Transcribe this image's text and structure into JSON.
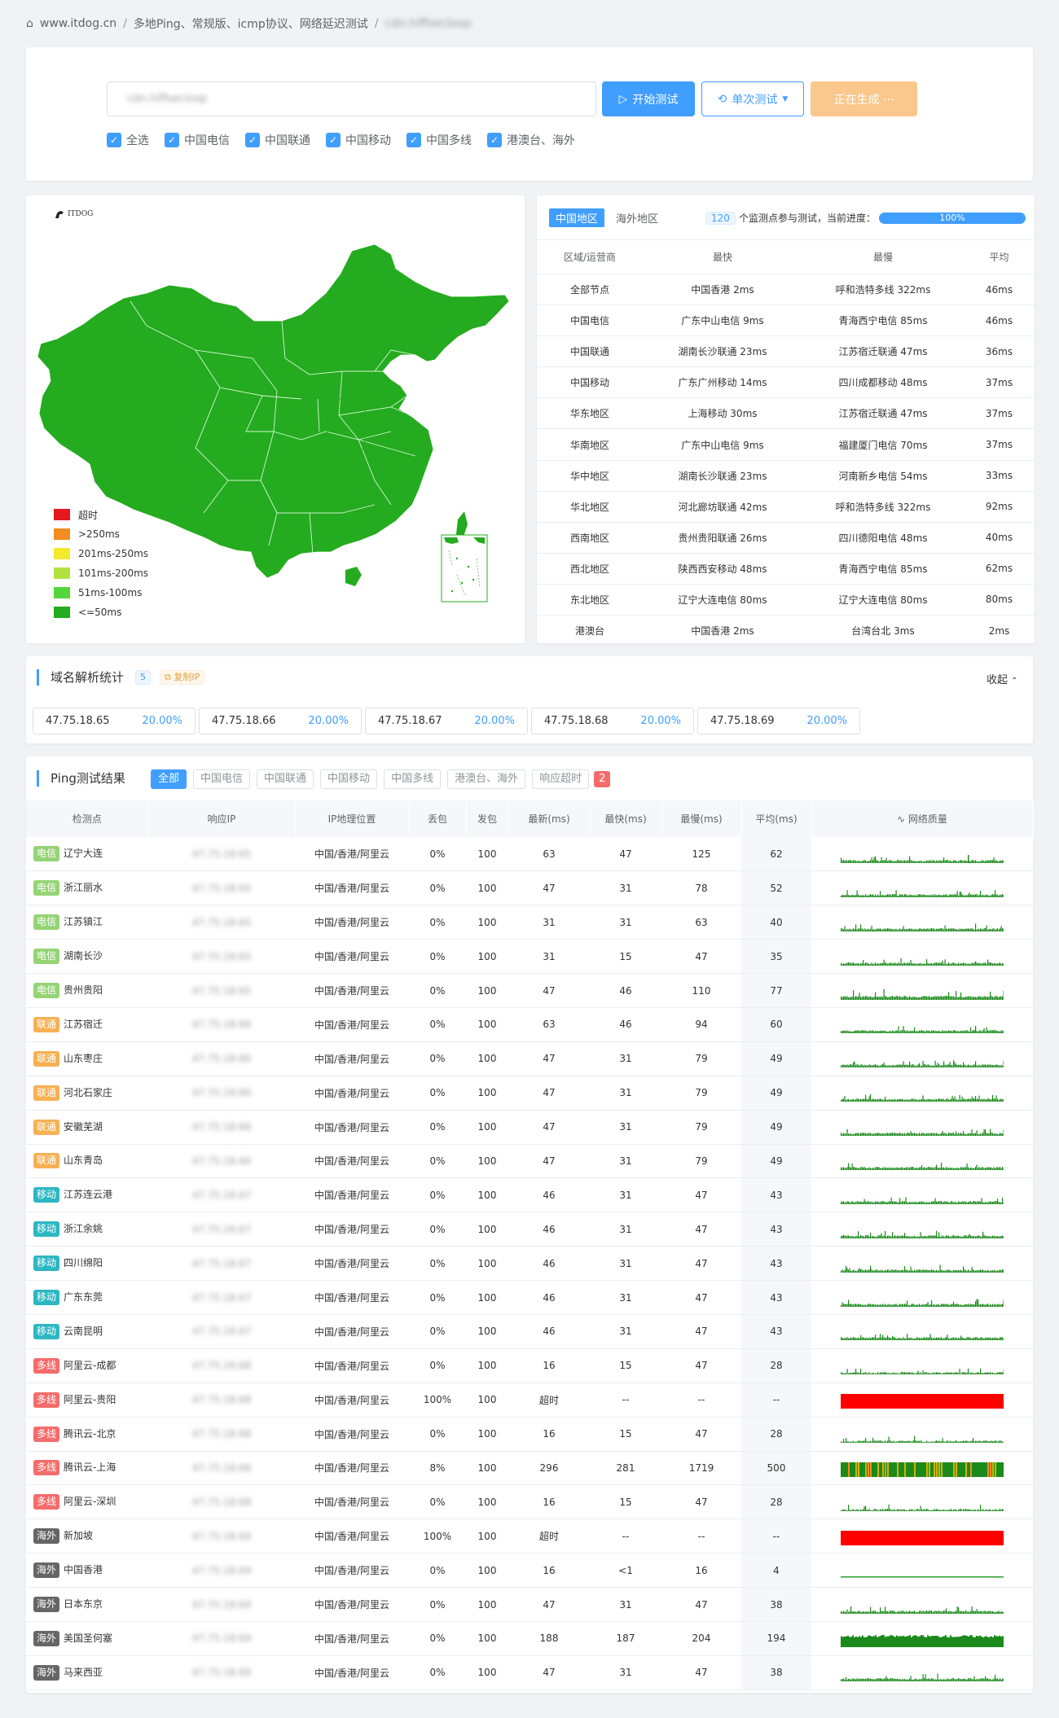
{
  "breadcrumb": {
    "home": "www.itdog.cn",
    "section": "多地Ping、常规版、icmp协议、网络延迟测试",
    "current": "cdn.hiffsecloop"
  },
  "search": {
    "placeholder": "cdn.hiffsecloop",
    "start": "开始测试",
    "single": "单次测试",
    "generating": "正在生成 ···"
  },
  "filters": [
    "全选",
    "中国电信",
    "中国联通",
    "中国移动",
    "中国多线",
    "港澳台、海外"
  ],
  "map": {
    "logo": "ITDOG",
    "legend": [
      {
        "label": "超时",
        "color": "#e3191d"
      },
      {
        "label": ">250ms",
        "color": "#f18d21"
      },
      {
        "label": "201ms-250ms",
        "color": "#f3e92d"
      },
      {
        "label": "101ms-200ms",
        "color": "#b2e241"
      },
      {
        "label": "51ms-100ms",
        "color": "#53d63a"
      },
      {
        "label": "<=50ms",
        "color": "#24ab1f"
      }
    ],
    "fill": "#24ab1f"
  },
  "region": {
    "tab_cn": "中国地区",
    "tab_ov": "海外地区",
    "count": "120",
    "status": "个监测点参与测试，当前进度：",
    "progress": "100%",
    "progress_value": 1.0,
    "headers": [
      "区域/运营商",
      "最快",
      "最慢",
      "平均"
    ],
    "rows": [
      [
        "全部节点",
        "中国香港 2ms",
        "呼和浩特多线 322ms",
        "46ms"
      ],
      [
        "中国电信",
        "广东中山电信 9ms",
        "青海西宁电信 85ms",
        "46ms"
      ],
      [
        "中国联通",
        "湖南长沙联通 23ms",
        "江苏宿迁联通 47ms",
        "36ms"
      ],
      [
        "中国移动",
        "广东广州移动 14ms",
        "四川成都移动 48ms",
        "37ms"
      ],
      [
        "华东地区",
        "上海移动 30ms",
        "江苏宿迁联通 47ms",
        "37ms"
      ],
      [
        "华南地区",
        "广东中山电信 9ms",
        "福建厦门电信 70ms",
        "37ms"
      ],
      [
        "华中地区",
        "湖南长沙联通 23ms",
        "河南新乡电信 54ms",
        "33ms"
      ],
      [
        "华北地区",
        "河北廊坊联通 42ms",
        "呼和浩特多线 322ms",
        "92ms"
      ],
      [
        "西南地区",
        "贵州贵阳联通 26ms",
        "四川德阳电信 48ms",
        "40ms"
      ],
      [
        "西北地区",
        "陕西西安移动 48ms",
        "青海西宁电信 85ms",
        "62ms"
      ],
      [
        "东北地区",
        "辽宁大连电信 80ms",
        "辽宁大连电信 80ms",
        "80ms"
      ],
      [
        "港澳台",
        "中国香港 2ms",
        "台湾台北 3ms",
        "2ms"
      ]
    ]
  },
  "dns": {
    "title": "域名解析统计",
    "count": "5",
    "copy": "复制IP",
    "collapse": "收起",
    "ips": [
      [
        "47.75.18.65",
        "20.00%"
      ],
      [
        "47.75.18.66",
        "20.00%"
      ],
      [
        "47.75.18.67",
        "20.00%"
      ],
      [
        "47.75.18.68",
        "20.00%"
      ],
      [
        "47.75.18.69",
        "20.00%"
      ]
    ]
  },
  "ping": {
    "title": "Ping测试结果",
    "filters": [
      "全部",
      "中国电信",
      "中国联通",
      "中国移动",
      "中国多线",
      "港澳台、海外",
      "响应超时"
    ],
    "timeout_count": "2",
    "headers": [
      "检测点",
      "响应IP",
      "IP地理位置",
      "丢包",
      "发包",
      "最新(ms)",
      "最快(ms)",
      "最慢(ms)",
      "平均(ms)",
      "网络质量"
    ],
    "rows": [
      {
        "tag": "电信",
        "cls": "t-dx",
        "node": "辽宁大连",
        "ip": "47.75.18.65",
        "geo": "中国/香港/阿里云",
        "loss": "0%",
        "sent": "100",
        "last": "63",
        "min": "47",
        "max": "125",
        "avg": "62",
        "q": "green"
      },
      {
        "tag": "电信",
        "cls": "t-dx",
        "node": "浙江丽水",
        "ip": "47.75.18.65",
        "geo": "中国/香港/阿里云",
        "loss": "0%",
        "sent": "100",
        "last": "47",
        "min": "31",
        "max": "78",
        "avg": "52",
        "q": "green"
      },
      {
        "tag": "电信",
        "cls": "t-dx",
        "node": "江苏镇江",
        "ip": "47.75.18.65",
        "geo": "中国/香港/阿里云",
        "loss": "0%",
        "sent": "100",
        "last": "31",
        "min": "31",
        "max": "63",
        "avg": "40",
        "q": "green"
      },
      {
        "tag": "电信",
        "cls": "t-dx",
        "node": "湖南长沙",
        "ip": "47.75.18.65",
        "geo": "中国/香港/阿里云",
        "loss": "0%",
        "sent": "100",
        "last": "31",
        "min": "15",
        "max": "47",
        "avg": "35",
        "q": "green"
      },
      {
        "tag": "电信",
        "cls": "t-dx",
        "node": "贵州贵阳",
        "ip": "47.75.18.65",
        "geo": "中国/香港/阿里云",
        "loss": "0%",
        "sent": "100",
        "last": "47",
        "min": "46",
        "max": "110",
        "avg": "77",
        "q": "green-tall"
      },
      {
        "tag": "联通",
        "cls": "t-lt",
        "node": "江苏宿迁",
        "ip": "47.75.18.66",
        "geo": "中国/香港/阿里云",
        "loss": "0%",
        "sent": "100",
        "last": "63",
        "min": "46",
        "max": "94",
        "avg": "60",
        "q": "green"
      },
      {
        "tag": "联通",
        "cls": "t-lt",
        "node": "山东枣庄",
        "ip": "47.75.18.66",
        "geo": "中国/香港/阿里云",
        "loss": "0%",
        "sent": "100",
        "last": "47",
        "min": "31",
        "max": "79",
        "avg": "49",
        "q": "green"
      },
      {
        "tag": "联通",
        "cls": "t-lt",
        "node": "河北石家庄",
        "ip": "47.75.18.66",
        "geo": "中国/香港/阿里云",
        "loss": "0%",
        "sent": "100",
        "last": "47",
        "min": "31",
        "max": "79",
        "avg": "49",
        "q": "green"
      },
      {
        "tag": "联通",
        "cls": "t-lt",
        "node": "安徽芜湖",
        "ip": "47.75.18.66",
        "geo": "中国/香港/阿里云",
        "loss": "0%",
        "sent": "100",
        "last": "47",
        "min": "31",
        "max": "79",
        "avg": "49",
        "q": "green"
      },
      {
        "tag": "联通",
        "cls": "t-lt",
        "node": "山东青岛",
        "ip": "47.75.18.66",
        "geo": "中国/香港/阿里云",
        "loss": "0%",
        "sent": "100",
        "last": "47",
        "min": "31",
        "max": "79",
        "avg": "49",
        "q": "green"
      },
      {
        "tag": "移动",
        "cls": "t-yd",
        "node": "江苏连云港",
        "ip": "47.75.18.67",
        "geo": "中国/香港/阿里云",
        "loss": "0%",
        "sent": "100",
        "last": "46",
        "min": "31",
        "max": "47",
        "avg": "43",
        "q": "green"
      },
      {
        "tag": "移动",
        "cls": "t-yd",
        "node": "浙江余姚",
        "ip": "47.75.18.67",
        "geo": "中国/香港/阿里云",
        "loss": "0%",
        "sent": "100",
        "last": "46",
        "min": "31",
        "max": "47",
        "avg": "43",
        "q": "green"
      },
      {
        "tag": "移动",
        "cls": "t-yd",
        "node": "四川绵阳",
        "ip": "47.75.18.67",
        "geo": "中国/香港/阿里云",
        "loss": "0%",
        "sent": "100",
        "last": "46",
        "min": "31",
        "max": "47",
        "avg": "43",
        "q": "green"
      },
      {
        "tag": "移动",
        "cls": "t-yd",
        "node": "广东东莞",
        "ip": "47.75.18.67",
        "geo": "中国/香港/阿里云",
        "loss": "0%",
        "sent": "100",
        "last": "46",
        "min": "31",
        "max": "47",
        "avg": "43",
        "q": "green"
      },
      {
        "tag": "移动",
        "cls": "t-yd",
        "node": "云南昆明",
        "ip": "47.75.18.67",
        "geo": "中国/香港/阿里云",
        "loss": "0%",
        "sent": "100",
        "last": "46",
        "min": "31",
        "max": "47",
        "avg": "43",
        "q": "green"
      },
      {
        "tag": "多线",
        "cls": "t-dxn",
        "node": "阿里云-成都",
        "ip": "47.75.18.68",
        "geo": "中国/香港/阿里云",
        "loss": "0%",
        "sent": "100",
        "last": "16",
        "min": "15",
        "max": "47",
        "avg": "28",
        "q": "green-low"
      },
      {
        "tag": "多线",
        "cls": "t-dxn",
        "node": "阿里云-贵阳",
        "ip": "47.75.18.68",
        "geo": "中国/香港/阿里云",
        "loss": "100%",
        "sent": "100",
        "last": "超时",
        "min": "--",
        "max": "--",
        "avg": "--",
        "q": "red"
      },
      {
        "tag": "多线",
        "cls": "t-dxn",
        "node": "腾讯云-北京",
        "ip": "47.75.18.68",
        "geo": "中国/香港/阿里云",
        "loss": "0%",
        "sent": "100",
        "last": "16",
        "min": "15",
        "max": "47",
        "avg": "28",
        "q": "green-low"
      },
      {
        "tag": "多线",
        "cls": "t-dxn",
        "node": "腾讯云-上海",
        "ip": "47.75.18.68",
        "geo": "中国/香港/阿里云",
        "loss": "8%",
        "sent": "100",
        "last": "296",
        "min": "281",
        "max": "1719",
        "avg": "500",
        "q": "mixed"
      },
      {
        "tag": "多线",
        "cls": "t-dxn",
        "node": "阿里云-深圳",
        "ip": "47.75.18.68",
        "geo": "中国/香港/阿里云",
        "loss": "0%",
        "sent": "100",
        "last": "16",
        "min": "15",
        "max": "47",
        "avg": "28",
        "q": "green-low"
      },
      {
        "tag": "海外",
        "cls": "t-hw",
        "node": "新加坡",
        "ip": "47.75.18.69",
        "geo": "中国/香港/阿里云",
        "loss": "100%",
        "sent": "100",
        "last": "超时",
        "min": "--",
        "max": "--",
        "avg": "--",
        "q": "red"
      },
      {
        "tag": "海外",
        "cls": "t-hw",
        "node": "中国香港",
        "ip": "47.75.18.69",
        "geo": "中国/香港/阿里云",
        "loss": "0%",
        "sent": "100",
        "last": "16",
        "min": "<1",
        "max": "16",
        "avg": "4",
        "q": "line"
      },
      {
        "tag": "海外",
        "cls": "t-hw",
        "node": "日本东京",
        "ip": "47.75.18.69",
        "geo": "中国/香港/阿里云",
        "loss": "0%",
        "sent": "100",
        "last": "47",
        "min": "31",
        "max": "47",
        "avg": "38",
        "q": "green"
      },
      {
        "tag": "海外",
        "cls": "t-hw",
        "node": "美国圣何塞",
        "ip": "47.75.18.69",
        "geo": "中国/香港/阿里云",
        "loss": "0%",
        "sent": "100",
        "last": "188",
        "min": "187",
        "max": "204",
        "avg": "194",
        "q": "solid"
      },
      {
        "tag": "海外",
        "cls": "t-hw",
        "node": "马来西亚",
        "ip": "47.75.18.69",
        "geo": "中国/香港/阿里云",
        "loss": "0%",
        "sent": "100",
        "last": "47",
        "min": "31",
        "max": "47",
        "avg": "38",
        "q": "green"
      }
    ]
  }
}
